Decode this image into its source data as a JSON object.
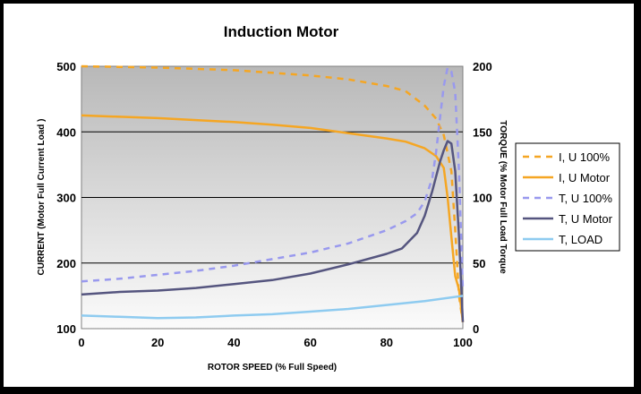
{
  "chart_data": {
    "type": "line",
    "title": "Induction Motor",
    "xlabel": "ROTOR SPEED (% Full Speed)",
    "ylabel_left": "CURRENT (Motor Full Current Load )",
    "ylabel_right": "TORQUE (% Motor Full Load Torque",
    "xlim": [
      0,
      100
    ],
    "ylim_left": [
      100,
      500
    ],
    "ylim_right": [
      0,
      200
    ],
    "x_ticks": [
      "0",
      "20",
      "40",
      "60",
      "80",
      "100"
    ],
    "y_left_ticks": [
      "100",
      "200",
      "300",
      "400",
      "500"
    ],
    "y_right_ticks": [
      "0",
      "50",
      "100",
      "150",
      "200"
    ],
    "grid": true,
    "legend_position": "right",
    "series": [
      {
        "name": "I, U 100%",
        "axis": "left",
        "color": "#f5a623",
        "dash": true,
        "points": [
          [
            0,
            500
          ],
          [
            10,
            499
          ],
          [
            20,
            498
          ],
          [
            30,
            496
          ],
          [
            40,
            494
          ],
          [
            50,
            490
          ],
          [
            60,
            486
          ],
          [
            70,
            480
          ],
          [
            80,
            470
          ],
          [
            85,
            462
          ],
          [
            90,
            440
          ],
          [
            93,
            420
          ],
          [
            95,
            395
          ],
          [
            97,
            340
          ],
          [
            98,
            250
          ],
          [
            99,
            150
          ],
          [
            100,
            110
          ]
        ]
      },
      {
        "name": "I, U Motor",
        "axis": "left",
        "color": "#f5a623",
        "dash": false,
        "points": [
          [
            0,
            425
          ],
          [
            10,
            423
          ],
          [
            20,
            421
          ],
          [
            30,
            418
          ],
          [
            40,
            415
          ],
          [
            50,
            411
          ],
          [
            60,
            406
          ],
          [
            70,
            398
          ],
          [
            80,
            390
          ],
          [
            85,
            385
          ],
          [
            90,
            375
          ],
          [
            93,
            363
          ],
          [
            95,
            345
          ],
          [
            96,
            300
          ],
          [
            97,
            240
          ],
          [
            98,
            180
          ],
          [
            99,
            160
          ],
          [
            100,
            110
          ]
        ]
      },
      {
        "name": "T, U 100%",
        "axis": "right",
        "color": "#9999ee",
        "dash": true,
        "points": [
          [
            0,
            36
          ],
          [
            10,
            38
          ],
          [
            20,
            41
          ],
          [
            30,
            44
          ],
          [
            40,
            48
          ],
          [
            50,
            53
          ],
          [
            60,
            58
          ],
          [
            70,
            65
          ],
          [
            80,
            75
          ],
          [
            85,
            82
          ],
          [
            88,
            88
          ],
          [
            90,
            97
          ],
          [
            92,
            115
          ],
          [
            93,
            135
          ],
          [
            94,
            160
          ],
          [
            95,
            185
          ],
          [
            96,
            199
          ],
          [
            97,
            196
          ],
          [
            98,
            180
          ],
          [
            99,
            120
          ],
          [
            100,
            30
          ]
        ]
      },
      {
        "name": "T, U Motor",
        "axis": "right",
        "color": "#55557f",
        "dash": false,
        "points": [
          [
            0,
            26
          ],
          [
            10,
            28
          ],
          [
            20,
            29
          ],
          [
            30,
            31
          ],
          [
            40,
            34
          ],
          [
            50,
            37
          ],
          [
            60,
            42
          ],
          [
            70,
            49
          ],
          [
            80,
            57
          ],
          [
            84,
            61
          ],
          [
            88,
            73
          ],
          [
            90,
            86
          ],
          [
            92,
            105
          ],
          [
            94,
            127
          ],
          [
            95,
            136
          ],
          [
            96,
            143
          ],
          [
            97,
            141
          ],
          [
            98,
            120
          ],
          [
            99,
            70
          ],
          [
            100,
            5
          ]
        ]
      },
      {
        "name": "T, LOAD",
        "axis": "right",
        "color": "#8ecbf0",
        "dash": false,
        "points": [
          [
            0,
            10
          ],
          [
            10,
            9
          ],
          [
            20,
            8
          ],
          [
            30,
            8.5
          ],
          [
            40,
            10
          ],
          [
            50,
            11
          ],
          [
            60,
            13
          ],
          [
            70,
            15
          ],
          [
            80,
            18
          ],
          [
            90,
            21
          ],
          [
            100,
            25
          ]
        ]
      }
    ]
  }
}
